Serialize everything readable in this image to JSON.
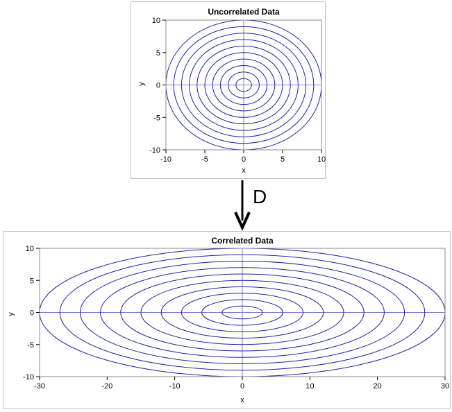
{
  "arrow_label": "D",
  "colors": {
    "curve": "#1f1fa8",
    "refline": "#7b7bd6",
    "frame": "#8a8a8a"
  },
  "chart_data": [
    {
      "type": "line",
      "title": "Uncorrelated Data",
      "xlabel": "x",
      "ylabel": "y",
      "xlim": [
        -10,
        10
      ],
      "ylim": [
        -10,
        10
      ],
      "xticks": [
        -10,
        -5,
        0,
        5,
        10
      ],
      "yticks": [
        -10,
        -5,
        0,
        5,
        10
      ],
      "reference_lines": {
        "x": 0,
        "y": 0
      },
      "series": [
        {
          "rx": 1,
          "ry": 1
        },
        {
          "rx": 2,
          "ry": 2
        },
        {
          "rx": 3,
          "ry": 3
        },
        {
          "rx": 4,
          "ry": 4
        },
        {
          "rx": 5,
          "ry": 5
        },
        {
          "rx": 6,
          "ry": 6
        },
        {
          "rx": 7,
          "ry": 7
        },
        {
          "rx": 8,
          "ry": 8
        },
        {
          "rx": 9,
          "ry": 9
        },
        {
          "rx": 10,
          "ry": 10
        }
      ]
    },
    {
      "type": "line",
      "title": "Correlated Data",
      "xlabel": "x",
      "ylabel": "y",
      "xlim": [
        -30,
        30
      ],
      "ylim": [
        -10,
        10
      ],
      "xticks": [
        -30,
        -20,
        -10,
        0,
        10,
        20,
        30
      ],
      "yticks": [
        -10,
        -5,
        0,
        5,
        10
      ],
      "reference_lines": {
        "x": 0,
        "y": 0
      },
      "series": [
        {
          "rx": 3,
          "ry": 1
        },
        {
          "rx": 6,
          "ry": 2
        },
        {
          "rx": 9,
          "ry": 3
        },
        {
          "rx": 12,
          "ry": 4
        },
        {
          "rx": 15,
          "ry": 5
        },
        {
          "rx": 18,
          "ry": 6
        },
        {
          "rx": 21,
          "ry": 7
        },
        {
          "rx": 24,
          "ry": 8
        },
        {
          "rx": 27,
          "ry": 9
        },
        {
          "rx": 30,
          "ry": 10
        }
      ]
    }
  ]
}
